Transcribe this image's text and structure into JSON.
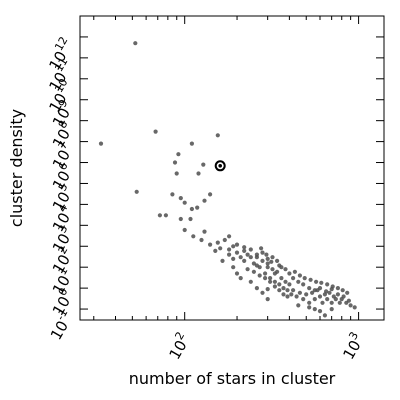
{
  "chart_data": {
    "type": "scatter",
    "xlabel": "number of stars in cluster",
    "ylabel": "cluster density",
    "x_scale": "log",
    "y_scale": "log",
    "xlim": [
      25,
      1400
    ],
    "ylim": [
      0.03,
      10000000000000.0
    ],
    "x_ticks": [
      {
        "value": 100,
        "base": "10",
        "exp": "2"
      },
      {
        "value": 1000,
        "base": "10",
        "exp": "3"
      }
    ],
    "y_ticks": [
      {
        "value": 0.1,
        "base": "10",
        "exp": "-1"
      },
      {
        "value": 1,
        "base": "10",
        "exp": "0"
      },
      {
        "value": 10,
        "base": "10",
        "exp": "1"
      },
      {
        "value": 100,
        "base": "10",
        "exp": "2"
      },
      {
        "value": 1000,
        "base": "10",
        "exp": "3"
      },
      {
        "value": 10000,
        "base": "10",
        "exp": "4"
      },
      {
        "value": 100000,
        "base": "10",
        "exp": "5"
      },
      {
        "value": 1000000,
        "base": "10",
        "exp": "6"
      },
      {
        "value": 10000000,
        "base": "10",
        "exp": "7"
      },
      {
        "value": 100000000,
        "base": "10",
        "exp": "8"
      },
      {
        "value": 1000000000,
        "base": "10",
        "exp": "9"
      },
      {
        "value": 10000000000,
        "base": "10",
        "exp": "10"
      },
      {
        "value": 100000000000,
        "base": "10",
        "exp": "11"
      },
      {
        "value": 1000000000000,
        "base": "10",
        "exp": "12"
      }
    ],
    "grid": false,
    "legend": "none",
    "marker_color": "#4d4d4d",
    "highlight_color": "#000000",
    "highlight_point": {
      "x": 160,
      "y": 700000
    },
    "points": [
      [
        52,
        500000000000.0
      ],
      [
        33,
        8000000.0
      ],
      [
        68,
        30000000.0
      ],
      [
        110,
        8000000.0
      ],
      [
        155,
        20000000.0
      ],
      [
        53,
        40000.0
      ],
      [
        88,
        1000000.0
      ],
      [
        92,
        2500000.0
      ],
      [
        90,
        300000.0
      ],
      [
        120,
        300000.0
      ],
      [
        128,
        800000.0
      ],
      [
        85,
        30000.0
      ],
      [
        95,
        20000.0
      ],
      [
        100,
        12000.0
      ],
      [
        110,
        6000.0
      ],
      [
        118,
        7000.0
      ],
      [
        130,
        15000.0
      ],
      [
        140,
        30000.0
      ],
      [
        108,
        2000.0
      ],
      [
        100,
        600
      ],
      [
        112,
        300
      ],
      [
        125,
        200
      ],
      [
        72,
        3000
      ],
      [
        78,
        3000
      ],
      [
        95,
        2000
      ],
      [
        130,
        500
      ],
      [
        155,
        150
      ],
      [
        150,
        60
      ],
      [
        165,
        20
      ],
      [
        170,
        200
      ],
      [
        180,
        70
      ],
      [
        180,
        40
      ],
      [
        190,
        100
      ],
      [
        200,
        50
      ],
      [
        210,
        30
      ],
      [
        220,
        20
      ],
      [
        230,
        40
      ],
      [
        240,
        30
      ],
      [
        250,
        15
      ],
      [
        260,
        30
      ],
      [
        270,
        10
      ],
      [
        280,
        20
      ],
      [
        290,
        5
      ],
      [
        300,
        10
      ],
      [
        310,
        3
      ],
      [
        320,
        8
      ],
      [
        330,
        2
      ],
      [
        340,
        6
      ],
      [
        350,
        1.5
      ],
      [
        360,
        3
      ],
      [
        370,
        1
      ],
      [
        380,
        2
      ],
      [
        390,
        0.8
      ],
      [
        400,
        1.5
      ],
      [
        410,
        0.5
      ],
      [
        420,
        0.8
      ],
      [
        440,
        0.4
      ],
      [
        460,
        0.6
      ],
      [
        480,
        0.3
      ],
      [
        500,
        0.5
      ],
      [
        520,
        0.2
      ],
      [
        540,
        0.6
      ],
      [
        560,
        0.3
      ],
      [
        580,
        0.8
      ],
      [
        600,
        0.4
      ],
      [
        620,
        0.2
      ],
      [
        640,
        0.5
      ],
      [
        660,
        0.3
      ],
      [
        680,
        0.6
      ],
      [
        700,
        0.2
      ],
      [
        720,
        0.4
      ],
      [
        740,
        0.3
      ],
      [
        760,
        0.5
      ],
      [
        780,
        0.2
      ],
      [
        800,
        0.3
      ],
      [
        850,
        0.2
      ],
      [
        900,
        0.15
      ],
      [
        950,
        0.12
      ],
      [
        880,
        0.25
      ],
      [
        820,
        0.4
      ],
      [
        220,
        60
      ],
      [
        240,
        70
      ],
      [
        260,
        40
      ],
      [
        280,
        50
      ],
      [
        300,
        25
      ],
      [
        320,
        30
      ],
      [
        350,
        12
      ],
      [
        380,
        8
      ],
      [
        420,
        3
      ],
      [
        450,
        2
      ],
      [
        480,
        1.5
      ],
      [
        520,
        1
      ],
      [
        560,
        0.8
      ],
      [
        600,
        1
      ],
      [
        650,
        0.7
      ],
      [
        700,
        0.9
      ],
      [
        230,
        8
      ],
      [
        250,
        6
      ],
      [
        270,
        4
      ],
      [
        290,
        3
      ],
      [
        310,
        2
      ],
      [
        330,
        1.2
      ],
      [
        350,
        0.8
      ],
      [
        370,
        0.5
      ],
      [
        390,
        0.4
      ],
      [
        200,
        5
      ],
      [
        210,
        3
      ],
      [
        190,
        10
      ],
      [
        240,
        2
      ],
      [
        260,
        1
      ],
      [
        280,
        0.6
      ],
      [
        300,
        0.3
      ],
      [
        450,
        0.15
      ],
      [
        520,
        0.12
      ],
      [
        600,
        0.08
      ],
      [
        700,
        0.1
      ],
      [
        300,
        15
      ],
      [
        340,
        20
      ],
      [
        360,
        10
      ],
      [
        400,
        5
      ],
      [
        430,
        6
      ],
      [
        460,
        4
      ],
      [
        490,
        3
      ],
      [
        530,
        2.5
      ],
      [
        570,
        2
      ],
      [
        610,
        1.8
      ],
      [
        660,
        1.5
      ],
      [
        710,
        1.2
      ],
      [
        760,
        1
      ],
      [
        810,
        0.8
      ],
      [
        860,
        0.6
      ],
      [
        640,
        0.05
      ],
      [
        560,
        0.1
      ],
      [
        300,
        0.9
      ],
      [
        330,
        5
      ],
      [
        180,
        300
      ],
      [
        200,
        120
      ],
      [
        220,
        90
      ],
      [
        160,
        80
      ],
      [
        190,
        25
      ],
      [
        140,
        120
      ],
      [
        260,
        12
      ],
      [
        275,
        80
      ],
      [
        295,
        40
      ],
      [
        315,
        18
      ]
    ]
  }
}
